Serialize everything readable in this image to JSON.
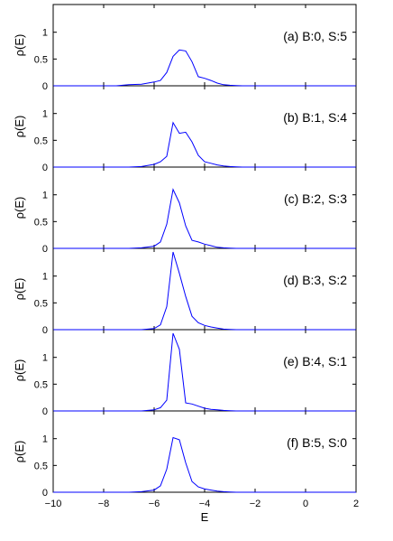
{
  "chart_data": {
    "type": "line",
    "xlabel": "E",
    "ylabel": "ρ(E)",
    "xlim": [
      -10,
      2
    ],
    "ylim": [
      0,
      1.45
    ],
    "xticks": [
      -10,
      -8,
      -6,
      -4,
      -2,
      0,
      2
    ],
    "yticks": [
      0,
      0.5,
      1
    ],
    "line_color": "#0000ff",
    "grid": false,
    "x": [
      -10,
      -9.5,
      -9,
      -8.5,
      -8,
      -7.5,
      -7,
      -6.5,
      -6,
      -5.75,
      -5.5,
      -5.25,
      -5,
      -4.75,
      -4.5,
      -4.25,
      -4,
      -3.75,
      -3.5,
      -3.25,
      -3,
      -2.75,
      -2.5,
      -2.25,
      -2,
      -1.5,
      -1,
      -0.5,
      0,
      0.5,
      1,
      1.5,
      2
    ],
    "panels": [
      {
        "label": "(a) B:0, S:5",
        "y": [
          0,
          0,
          0,
          0,
          0,
          0,
          0.02,
          0.03,
          0.07,
          0.1,
          0.25,
          0.55,
          0.67,
          0.65,
          0.45,
          0.17,
          0.14,
          0.1,
          0.05,
          0.02,
          0.01,
          0.005,
          0,
          0,
          0,
          0,
          0,
          0,
          0,
          0,
          0,
          0,
          0
        ]
      },
      {
        "label": "(b) B:1, S:4",
        "y": [
          0,
          0,
          0,
          0,
          0,
          0,
          0,
          0.01,
          0.05,
          0.1,
          0.2,
          0.83,
          0.63,
          0.65,
          0.47,
          0.22,
          0.1,
          0.07,
          0.04,
          0.02,
          0.01,
          0.005,
          0,
          0,
          0,
          0,
          0,
          0,
          0,
          0,
          0,
          0,
          0
        ]
      },
      {
        "label": "(c) B:2, S:3",
        "y": [
          0,
          0,
          0,
          0,
          0,
          0,
          0,
          0.01,
          0.04,
          0.12,
          0.45,
          1.1,
          0.85,
          0.42,
          0.15,
          0.12,
          0.08,
          0.05,
          0.02,
          0.01,
          0.005,
          0,
          0,
          0,
          0,
          0,
          0,
          0,
          0,
          0,
          0,
          0,
          0
        ]
      },
      {
        "label": "(d) B:3, S:2",
        "y": [
          0,
          0,
          0,
          0,
          0,
          0,
          0,
          0,
          0.02,
          0.09,
          0.43,
          1.45,
          1.05,
          0.62,
          0.25,
          0.13,
          0.08,
          0.05,
          0.03,
          0.01,
          0.005,
          0,
          0,
          0,
          0,
          0,
          0,
          0,
          0,
          0,
          0,
          0,
          0
        ]
      },
      {
        "label": "(e) B:4, S:1",
        "y": [
          0,
          0,
          0,
          0,
          0,
          0,
          0,
          0,
          0.02,
          0.06,
          0.2,
          1.45,
          1.15,
          0.15,
          0.13,
          0.09,
          0.05,
          0.03,
          0.02,
          0.01,
          0.005,
          0,
          0,
          0,
          0,
          0,
          0,
          0,
          0,
          0,
          0,
          0,
          0
        ]
      },
      {
        "label": "(f) B:5, S:0",
        "y": [
          0,
          0,
          0,
          0,
          0,
          0,
          0,
          0.01,
          0.04,
          0.12,
          0.43,
          1.02,
          0.98,
          0.55,
          0.2,
          0.1,
          0.06,
          0.04,
          0.02,
          0.01,
          0.005,
          0,
          0,
          0,
          0,
          0,
          0,
          0,
          0,
          0,
          0,
          0,
          0
        ]
      }
    ]
  }
}
